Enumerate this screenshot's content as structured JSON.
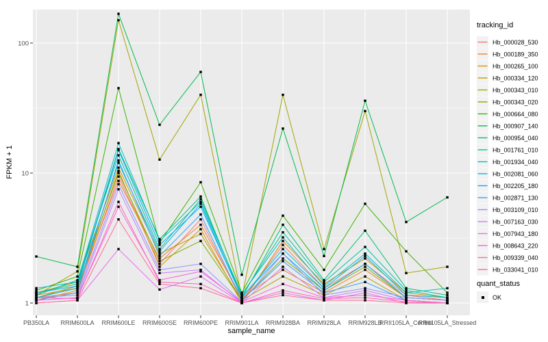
{
  "chart_data": {
    "type": "line",
    "title": "",
    "xlabel": "sample_name",
    "ylabel": "FPKM + 1",
    "y_scale": "log10",
    "y_ticks": [
      1,
      10,
      100
    ],
    "y_minor_ticks": [
      3.162,
      31.62
    ],
    "ylim": [
      0.82,
      181
    ],
    "grid": true,
    "panel_bg": "#EBEBEB",
    "grid_color": "#FFFFFF",
    "axis_text_color": "#4D4D4D",
    "tick_mark_color": "#333333",
    "legend_key_bg": "#F2F2F2",
    "legend_position": "right",
    "marker": {
      "shape": "square",
      "color": "#000000",
      "size": 3.4,
      "status_label": "OK"
    },
    "categories": [
      "PB350LA",
      "RRIM600LA",
      "RRIM600LE",
      "RRIM600SE",
      "RRIM600PE",
      "RRIM901LA",
      "RRIM928BA",
      "RRIM928LA",
      "RRIM928LB",
      "RRII105LA_Control",
      "RRII105LA_Stressed"
    ],
    "series": [
      {
        "name": "Hb_000028_530",
        "color": "#F8766D",
        "values": [
          1.1,
          1.2,
          9.4,
          2.0,
          4.4,
          1.05,
          2.8,
          1.3,
          2.0,
          1.15,
          1.05
        ]
      },
      {
        "name": "Hb_000189_350",
        "color": "#EA8331",
        "values": [
          1.15,
          1.3,
          8.7,
          2.2,
          4.0,
          1.1,
          1.8,
          1.2,
          1.8,
          1.1,
          1.05
        ]
      },
      {
        "name": "Hb_000265_100",
        "color": "#D89000",
        "values": [
          1.05,
          1.25,
          10.4,
          1.9,
          3.7,
          1.0,
          3.0,
          1.4,
          2.2,
          1.2,
          1.1
        ]
      },
      {
        "name": "Hb_000334_120",
        "color": "#C09B00",
        "values": [
          1.2,
          1.45,
          11.0,
          2.4,
          3.4,
          1.05,
          1.6,
          1.15,
          1.6,
          1.05,
          1.0
        ]
      },
      {
        "name": "Hb_000343_010",
        "color": "#A3A500",
        "values": [
          1.15,
          1.75,
          150,
          12.7,
          40,
          1.1,
          40,
          2.6,
          30,
          1.7,
          1.9
        ]
      },
      {
        "name": "Hb_000343_020",
        "color": "#7CAE00",
        "values": [
          1.1,
          1.35,
          10.0,
          2.1,
          3.0,
          1.05,
          2.2,
          1.25,
          1.9,
          1.1,
          1.05
        ]
      },
      {
        "name": "Hb_000664_080",
        "color": "#39B600",
        "values": [
          1.25,
          1.6,
          45,
          2.9,
          8.5,
          1.2,
          4.7,
          1.8,
          5.8,
          2.5,
          1.2
        ]
      },
      {
        "name": "Hb_000907_140",
        "color": "#00BB4E",
        "values": [
          2.28,
          1.9,
          168,
          23.5,
          60,
          1.65,
          22,
          2.3,
          36,
          4.2,
          6.5
        ]
      },
      {
        "name": "Hb_000954_040",
        "color": "#00BF7D",
        "values": [
          1.2,
          1.4,
          15.3,
          3.1,
          6.6,
          1.1,
          4.0,
          1.5,
          3.6,
          1.3,
          1.15
        ]
      },
      {
        "name": "Hb_001761_010",
        "color": "#00C1A3",
        "values": [
          1.15,
          1.5,
          13.7,
          2.6,
          6.3,
          1.15,
          3.5,
          1.45,
          2.7,
          1.25,
          1.1
        ]
      },
      {
        "name": "Hb_001934_040",
        "color": "#00BFC4",
        "values": [
          1.3,
          1.45,
          17.0,
          3.0,
          6.0,
          1.17,
          3.2,
          1.35,
          2.4,
          1.2,
          1.3
        ]
      },
      {
        "name": "Hb_002081_060",
        "color": "#00BAE0",
        "values": [
          1.1,
          1.3,
          12.0,
          2.5,
          5.8,
          1.1,
          2.6,
          1.3,
          2.3,
          1.15,
          1.1
        ]
      },
      {
        "name": "Hb_002205_180",
        "color": "#00B0F6",
        "values": [
          1.2,
          1.35,
          15.0,
          2.8,
          5.5,
          1.12,
          2.4,
          1.25,
          2.0,
          1.1,
          1.05
        ]
      },
      {
        "name": "Hb_002871_130",
        "color": "#35A2FF",
        "values": [
          1.05,
          1.2,
          12.5,
          2.3,
          4.8,
          1.05,
          2.1,
          1.2,
          1.45,
          1.05,
          1.0
        ]
      },
      {
        "name": "Hb_003109_010",
        "color": "#9590FF",
        "values": [
          1.1,
          1.15,
          8.2,
          1.8,
          2.0,
          1.02,
          2.4,
          1.15,
          1.3,
          1.1,
          1.05
        ]
      },
      {
        "name": "Hb_007163_030",
        "color": "#C77CFF",
        "values": [
          1.05,
          1.1,
          7.5,
          1.7,
          1.8,
          1.0,
          1.9,
          1.1,
          1.25,
          1.05,
          1.0
        ]
      },
      {
        "name": "Hb_007943_180",
        "color": "#E76BF3",
        "values": [
          1.0,
          1.05,
          2.6,
          1.27,
          1.6,
          1.0,
          1.2,
          1.05,
          1.2,
          1.0,
          1.0
        ]
      },
      {
        "name": "Hb_008643_220",
        "color": "#FA62DB",
        "values": [
          1.05,
          1.1,
          5.5,
          1.5,
          1.75,
          1.02,
          1.4,
          1.1,
          1.15,
          1.05,
          1.0
        ]
      },
      {
        "name": "Hb_009339_040",
        "color": "#FF62BC",
        "values": [
          1.1,
          1.08,
          6.0,
          1.45,
          1.4,
          1.0,
          1.25,
          1.08,
          1.1,
          1.02,
          1.0
        ]
      },
      {
        "name": "Hb_033041_010",
        "color": "#FF6A98",
        "values": [
          1.0,
          1.05,
          4.4,
          1.4,
          1.3,
          1.0,
          1.15,
          1.05,
          1.05,
          1.0,
          1.0
        ]
      }
    ]
  },
  "axes": {
    "x_title": "sample_name",
    "y_title": "FPKM + 1"
  },
  "legend": {
    "series_title": "tracking_id",
    "shape_title": "quant_status",
    "shape_label": "OK"
  }
}
